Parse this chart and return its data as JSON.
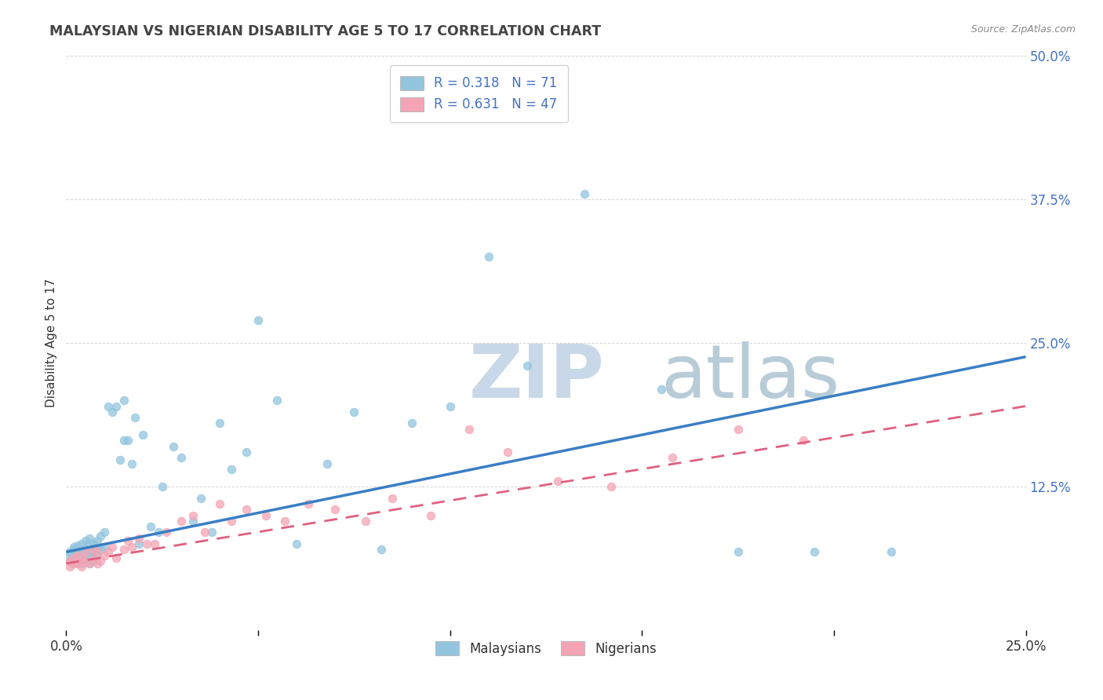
{
  "title": "MALAYSIAN VS NIGERIAN DISABILITY AGE 5 TO 17 CORRELATION CHART",
  "source_text": "Source: ZipAtlas.com",
  "ylabel": "Disability Age 5 to 17",
  "xlim": [
    0.0,
    0.25
  ],
  "ylim": [
    0.0,
    0.5
  ],
  "xticks": [
    0.0,
    0.05,
    0.1,
    0.15,
    0.2,
    0.25
  ],
  "yticks": [
    0.0,
    0.125,
    0.25,
    0.375,
    0.5
  ],
  "xtick_labels": [
    "0.0%",
    "",
    "",
    "",
    "",
    "25.0%"
  ],
  "ytick_labels": [
    "",
    "12.5%",
    "25.0%",
    "37.5%",
    "50.0%"
  ],
  "malaysian_R": 0.318,
  "malaysian_N": 71,
  "nigerian_R": 0.631,
  "nigerian_N": 47,
  "blue_color": "#92c5de",
  "pink_color": "#f4a4b4",
  "blue_line_color": "#3a7ec4",
  "pink_line_color": "#e06080",
  "legend_label_1": "Malaysians",
  "legend_label_2": "Nigerians",
  "watermark_zip": "ZIP",
  "watermark_atlas": "atlas",
  "watermark_color_zip": "#c8d8e8",
  "watermark_color_atlas": "#b8ccd8",
  "background_color": "#ffffff",
  "malaysian_x": [
    0.001,
    0.001,
    0.001,
    0.002,
    0.002,
    0.002,
    0.002,
    0.003,
    0.003,
    0.003,
    0.003,
    0.004,
    0.004,
    0.004,
    0.004,
    0.005,
    0.005,
    0.005,
    0.005,
    0.006,
    0.006,
    0.006,
    0.006,
    0.006,
    0.007,
    0.007,
    0.007,
    0.008,
    0.008,
    0.008,
    0.009,
    0.009,
    0.01,
    0.01,
    0.011,
    0.012,
    0.013,
    0.014,
    0.015,
    0.015,
    0.016,
    0.017,
    0.018,
    0.019,
    0.02,
    0.022,
    0.024,
    0.025,
    0.028,
    0.03,
    0.033,
    0.035,
    0.038,
    0.04,
    0.043,
    0.047,
    0.05,
    0.055,
    0.06,
    0.068,
    0.075,
    0.082,
    0.09,
    0.1,
    0.11,
    0.12,
    0.135,
    0.155,
    0.175,
    0.195,
    0.215
  ],
  "malaysian_y": [
    0.06,
    0.065,
    0.068,
    0.058,
    0.062,
    0.07,
    0.072,
    0.06,
    0.064,
    0.068,
    0.074,
    0.058,
    0.063,
    0.07,
    0.075,
    0.06,
    0.065,
    0.07,
    0.078,
    0.058,
    0.063,
    0.068,
    0.075,
    0.08,
    0.06,
    0.068,
    0.076,
    0.065,
    0.07,
    0.078,
    0.07,
    0.082,
    0.072,
    0.085,
    0.195,
    0.19,
    0.195,
    0.148,
    0.2,
    0.165,
    0.165,
    0.145,
    0.185,
    0.075,
    0.17,
    0.09,
    0.085,
    0.125,
    0.16,
    0.15,
    0.095,
    0.115,
    0.085,
    0.18,
    0.14,
    0.155,
    0.27,
    0.2,
    0.075,
    0.145,
    0.19,
    0.07,
    0.18,
    0.195,
    0.325,
    0.23,
    0.38,
    0.21,
    0.068,
    0.068,
    0.068
  ],
  "nigerian_x": [
    0.001,
    0.001,
    0.002,
    0.002,
    0.003,
    0.003,
    0.004,
    0.004,
    0.005,
    0.005,
    0.006,
    0.007,
    0.007,
    0.008,
    0.008,
    0.009,
    0.01,
    0.011,
    0.012,
    0.013,
    0.015,
    0.016,
    0.017,
    0.019,
    0.021,
    0.023,
    0.026,
    0.03,
    0.033,
    0.036,
    0.04,
    0.043,
    0.047,
    0.052,
    0.057,
    0.063,
    0.07,
    0.078,
    0.085,
    0.095,
    0.105,
    0.115,
    0.128,
    0.142,
    0.158,
    0.175,
    0.192
  ],
  "nigerian_y": [
    0.055,
    0.06,
    0.058,
    0.063,
    0.058,
    0.065,
    0.055,
    0.062,
    0.06,
    0.068,
    0.058,
    0.062,
    0.07,
    0.058,
    0.068,
    0.06,
    0.065,
    0.068,
    0.072,
    0.063,
    0.07,
    0.078,
    0.072,
    0.08,
    0.075,
    0.075,
    0.085,
    0.095,
    0.1,
    0.085,
    0.11,
    0.095,
    0.105,
    0.1,
    0.095,
    0.11,
    0.105,
    0.095,
    0.115,
    0.1,
    0.175,
    0.155,
    0.13,
    0.125,
    0.15,
    0.175,
    0.165
  ],
  "blue_line_x0": 0.0,
  "blue_line_y0": 0.068,
  "blue_line_x1": 0.25,
  "blue_line_y1": 0.238,
  "pink_line_x0": 0.0,
  "pink_line_y0": 0.058,
  "pink_line_x1": 0.25,
  "pink_line_y1": 0.195
}
